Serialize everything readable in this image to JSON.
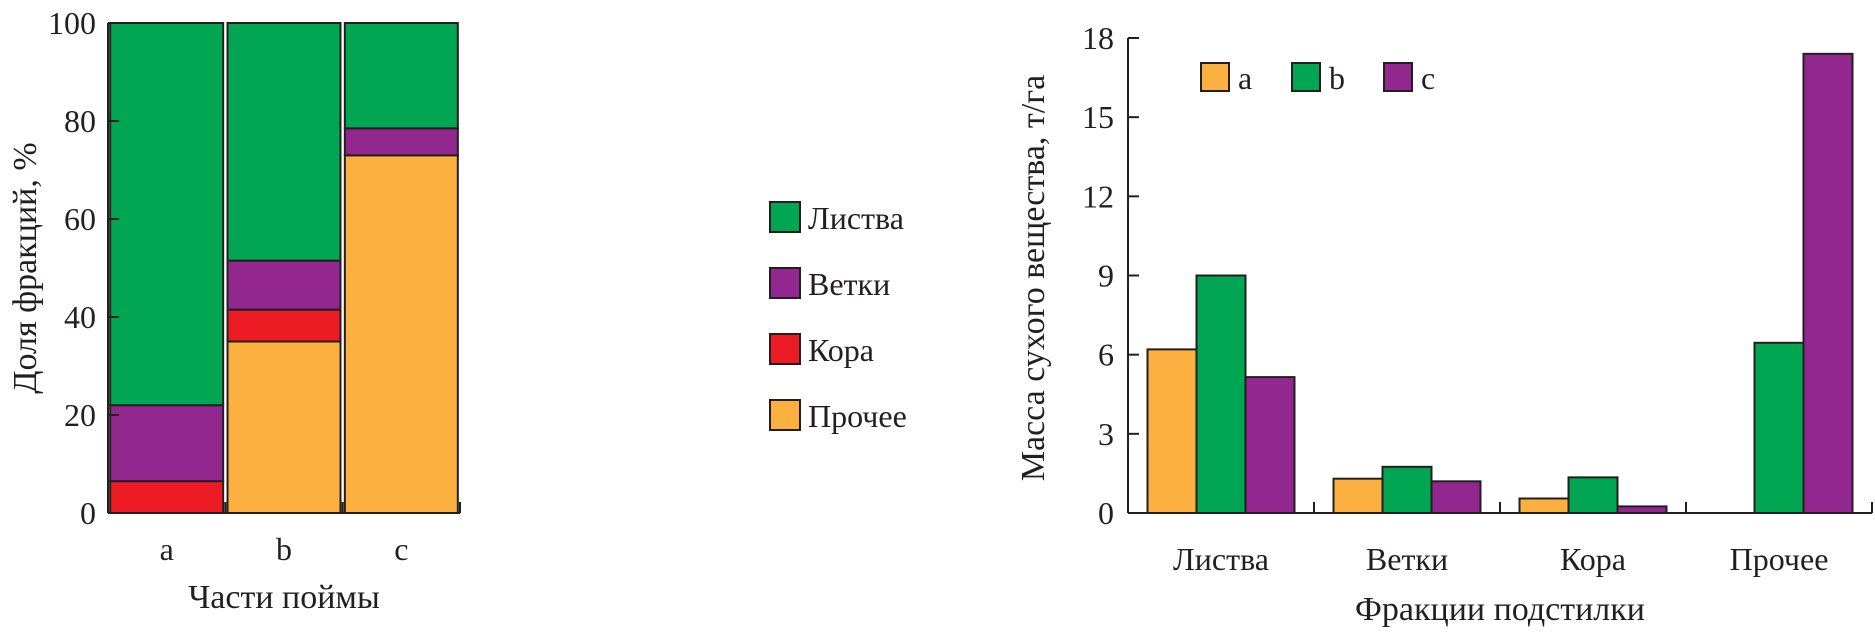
{
  "colors": {
    "foliage": "#00a651",
    "branches": "#92278f",
    "bark": "#ed1c24",
    "other": "#fbb040",
    "axis": "#231f20"
  },
  "chart_data": [
    {
      "type": "bar",
      "stacked": true,
      "title": "",
      "xlabel": "Части поймы",
      "ylabel": "Доля фракций, %",
      "categories": [
        "a",
        "b",
        "c"
      ],
      "ylim": [
        0,
        100
      ],
      "yticks": [
        0,
        20,
        40,
        60,
        80,
        100
      ],
      "legend_position": "right",
      "legend": [
        "Листва",
        "Ветки",
        "Кора",
        "Прочее"
      ],
      "series": [
        {
          "name": "Прочее",
          "color_key": "other",
          "values": [
            0,
            35,
            73
          ]
        },
        {
          "name": "Кора",
          "color_key": "bark",
          "values": [
            6.5,
            6.5,
            0
          ]
        },
        {
          "name": "Ветки",
          "color_key": "branches",
          "values": [
            15.5,
            10,
            5.5
          ]
        },
        {
          "name": "Листва",
          "color_key": "foliage",
          "values": [
            78,
            48.5,
            21.5
          ]
        }
      ]
    },
    {
      "type": "bar",
      "stacked": false,
      "title": "",
      "xlabel": "Фракции подстилки",
      "ylabel": "Масса сухого вещества, т/га",
      "categories": [
        "Листва",
        "Ветки",
        "Кора",
        "Прочее"
      ],
      "ylim": [
        0,
        18
      ],
      "yticks": [
        0,
        3,
        6,
        9,
        12,
        15,
        18
      ],
      "legend_position": "top-left",
      "series": [
        {
          "name": "a",
          "color_key": "other",
          "values": [
            6.2,
            1.3,
            0.55,
            0
          ]
        },
        {
          "name": "b",
          "color_key": "foliage",
          "values": [
            9.0,
            1.75,
            1.35,
            6.45
          ]
        },
        {
          "name": "c",
          "color_key": "branches",
          "values": [
            5.15,
            1.2,
            0.25,
            17.4
          ]
        }
      ]
    }
  ]
}
